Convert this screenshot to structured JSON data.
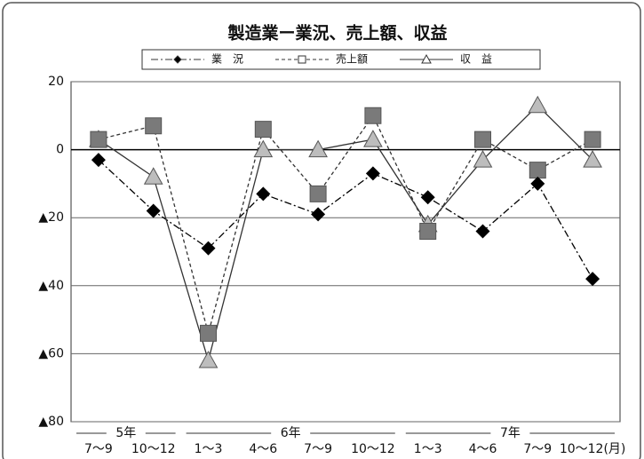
{
  "chart_data": {
    "type": "line",
    "title": "製造業ー業況、売上額、収益",
    "categories": [
      "7～9",
      "10～12",
      "1～3",
      "4～6",
      "7～9",
      "10～12",
      "1～3",
      "4～6",
      "7～9",
      "10～12(月)"
    ],
    "year_groups": [
      {
        "label": "5年",
        "span": 2
      },
      {
        "label": "6年",
        "span": 4
      },
      {
        "label": "7年",
        "span": 4
      }
    ],
    "series": [
      {
        "name": "業　況",
        "color": "#000000",
        "marker": "diamond",
        "dash": "8 3 2 3",
        "values": [
          -3,
          -18,
          -29,
          -13,
          -19,
          -7,
          -14,
          -24,
          -10,
          -38
        ]
      },
      {
        "name": "売上額",
        "color": "#7a7a7a",
        "marker": "square",
        "dash": "4 3",
        "values": [
          3,
          7,
          -54,
          6,
          -13,
          10,
          -24,
          3,
          -6,
          3
        ]
      },
      {
        "name": "収　益",
        "color": "#bdbdbd",
        "marker": "triangle",
        "dash": "none",
        "values": [
          3,
          -8,
          -62,
          0,
          0,
          3,
          -22,
          -3,
          13,
          -3
        ]
      }
    ],
    "ylim": [
      -80,
      20
    ],
    "yticks": [
      20,
      0,
      {
        "value": -20,
        "label": "▲20"
      },
      {
        "value": -40,
        "label": "▲40"
      },
      {
        "value": -60,
        "label": "▲60"
      },
      {
        "value": -80,
        "label": "▲80"
      }
    ],
    "grid": true
  }
}
